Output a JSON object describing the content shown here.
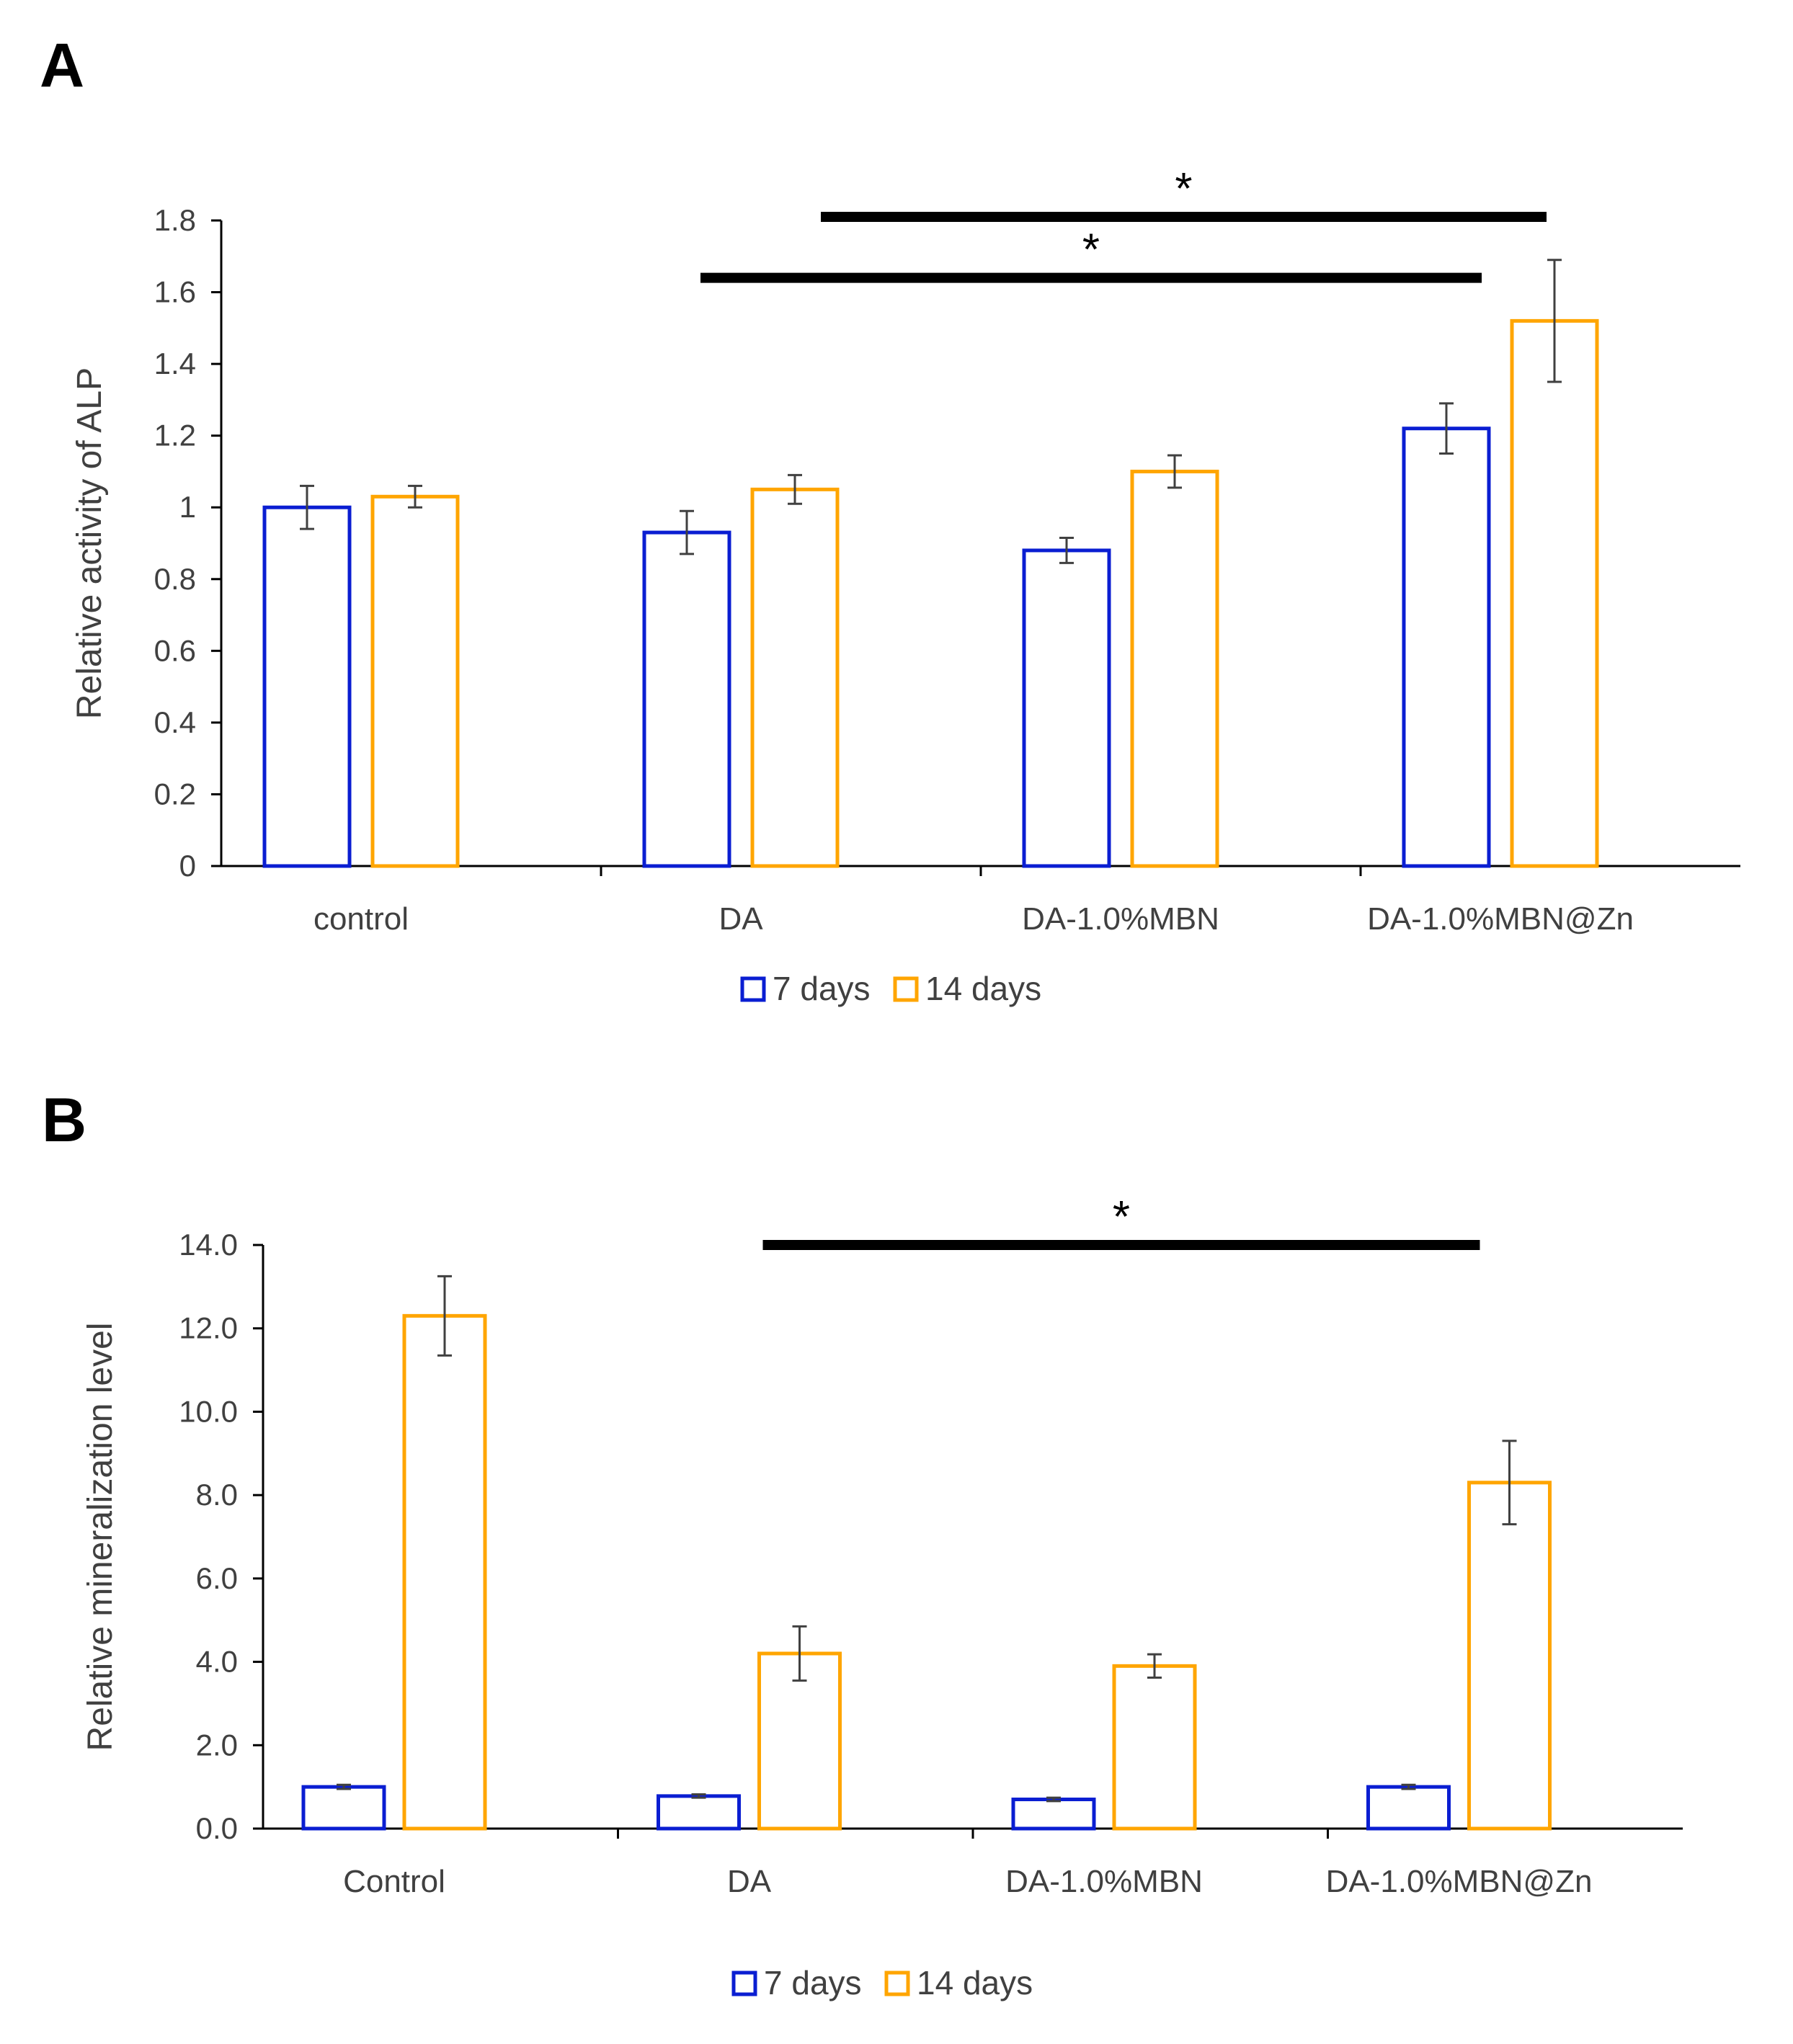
{
  "colors": {
    "series_7": "#0A1ED2",
    "series_14": "#FFA500",
    "axis": "#000000",
    "text": "#404040",
    "error_bar": "#404040",
    "sig_bar": "#000000"
  },
  "chart_data": [
    {
      "type": "bar",
      "panel": "A",
      "title": "",
      "xlabel": "",
      "ylabel": "Relative activity of ALP",
      "ylim": [
        0,
        1.8
      ],
      "yticks": [
        "0",
        "0.2",
        "0.4",
        "0.6",
        "0.8",
        "1",
        "1.2",
        "1.4",
        "1.6",
        "1.8"
      ],
      "categories": [
        "control",
        "DA",
        "DA-1.0%MBN",
        "DA-1.0%MBN@Zn"
      ],
      "series": [
        {
          "name": "7 days",
          "values": [
            1.0,
            0.93,
            0.88,
            1.22
          ],
          "errors": [
            0.06,
            0.06,
            0.035,
            0.07
          ]
        },
        {
          "name": "14 days",
          "values": [
            1.03,
            1.05,
            1.1,
            1.52
          ],
          "errors": [
            0.03,
            0.04,
            0.045,
            0.17
          ]
        }
      ],
      "legend": {
        "position": "bottom",
        "entries": [
          "7 days",
          "14 days"
        ]
      },
      "significance": [
        {
          "from_category": 1,
          "to_category": 3,
          "to_series": 0,
          "y": 1.64,
          "label": "*"
        },
        {
          "from_category": 1,
          "to_category": 3,
          "to_series": 1,
          "y": 1.81,
          "label": "*"
        }
      ]
    },
    {
      "type": "bar",
      "panel": "B",
      "title": "",
      "xlabel": "",
      "ylabel": "Relative mineralization level",
      "ylim": [
        0,
        14
      ],
      "yticks": [
        "0.0",
        "2.0",
        "4.0",
        "6.0",
        "8.0",
        "10.0",
        "12.0",
        "14.0"
      ],
      "categories": [
        "Control",
        "DA",
        "DA-1.0%MBN",
        "DA-1.0%MBN@Zn"
      ],
      "series": [
        {
          "name": "7 days",
          "values": [
            1.0,
            0.78,
            0.7,
            1.0
          ],
          "errors": [
            0.05,
            0.04,
            0.04,
            0.05
          ]
        },
        {
          "name": "14 days",
          "values": [
            12.3,
            4.2,
            3.9,
            8.3
          ],
          "errors": [
            0.95,
            0.65,
            0.28,
            1.0
          ]
        }
      ],
      "legend": {
        "position": "bottom",
        "entries": [
          "7 days",
          "14 days"
        ]
      },
      "significance": [
        {
          "from_category": 1,
          "to_category": 3,
          "y": 14.0,
          "label": "*"
        }
      ]
    }
  ]
}
